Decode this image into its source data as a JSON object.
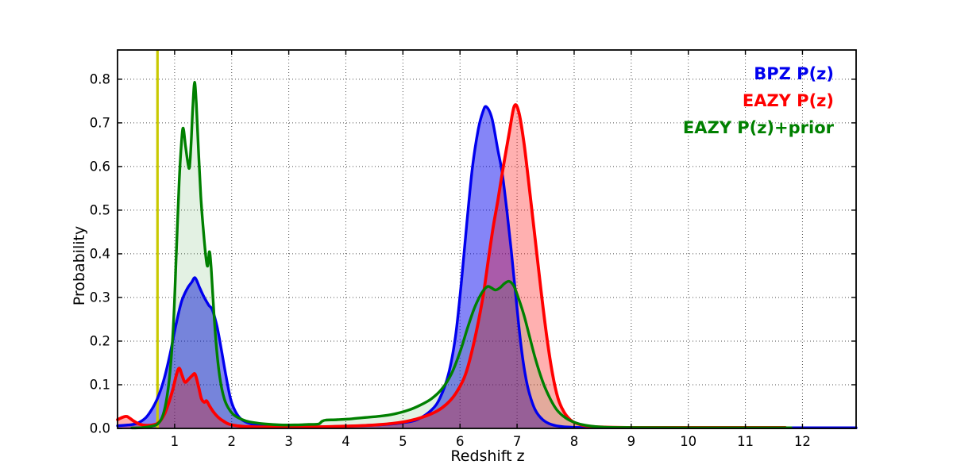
{
  "figure": {
    "background": "#ffffff",
    "xlabel": "Redshift z",
    "ylabel": "Probability"
  },
  "legend": {
    "position": "upper right",
    "items": [
      {
        "label": "BPZ P(z)",
        "color": "#0000ee"
      },
      {
        "label": "EAZY P(z)",
        "color": "#ff0000"
      },
      {
        "label": "EAZY P(z)+prior",
        "color": "#008000"
      }
    ]
  },
  "chart_data": {
    "type": "line",
    "title": "",
    "xlabel": "Redshift z",
    "ylabel": "Probability",
    "xlim": [
      0,
      12.94
    ],
    "ylim": [
      0,
      0.867
    ],
    "xticks": [
      1,
      2,
      3,
      4,
      5,
      6,
      7,
      8,
      9,
      10,
      11,
      12
    ],
    "yticks": [
      "0.0",
      "0.1",
      "0.2",
      "0.3",
      "0.4",
      "0.5",
      "0.6",
      "0.7",
      "0.8"
    ],
    "grid": true,
    "grid_style": "dotted",
    "vline": {
      "x": 0.7,
      "color": "#c9c900",
      "width": 3.2
    },
    "series": [
      {
        "name": "BPZ P(z)",
        "color": "#0000ee",
        "fill_opacity": 0.48,
        "line_width": 3.4,
        "points": [
          [
            0,
            0.006
          ],
          [
            0.2,
            0.008
          ],
          [
            0.35,
            0.012
          ],
          [
            0.5,
            0.025
          ],
          [
            0.62,
            0.048
          ],
          [
            0.72,
            0.075
          ],
          [
            0.82,
            0.115
          ],
          [
            0.92,
            0.17
          ],
          [
            1.02,
            0.235
          ],
          [
            1.12,
            0.29
          ],
          [
            1.22,
            0.32
          ],
          [
            1.3,
            0.335
          ],
          [
            1.36,
            0.345
          ],
          [
            1.44,
            0.322
          ],
          [
            1.52,
            0.3
          ],
          [
            1.6,
            0.282
          ],
          [
            1.66,
            0.272
          ],
          [
            1.74,
            0.235
          ],
          [
            1.82,
            0.18
          ],
          [
            1.9,
            0.12
          ],
          [
            1.98,
            0.068
          ],
          [
            2.06,
            0.04
          ],
          [
            2.16,
            0.022
          ],
          [
            2.3,
            0.012
          ],
          [
            2.5,
            0.007
          ],
          [
            2.8,
            0.005
          ],
          [
            3.2,
            0.004
          ],
          [
            3.7,
            0.004
          ],
          [
            4.2,
            0.006
          ],
          [
            4.7,
            0.009
          ],
          [
            5.0,
            0.013
          ],
          [
            5.25,
            0.02
          ],
          [
            5.5,
            0.042
          ],
          [
            5.65,
            0.07
          ],
          [
            5.8,
            0.125
          ],
          [
            5.92,
            0.21
          ],
          [
            6.02,
            0.33
          ],
          [
            6.12,
            0.47
          ],
          [
            6.22,
            0.6
          ],
          [
            6.32,
            0.685
          ],
          [
            6.4,
            0.725
          ],
          [
            6.46,
            0.737
          ],
          [
            6.56,
            0.71
          ],
          [
            6.66,
            0.64
          ],
          [
            6.74,
            0.585
          ],
          [
            6.82,
            0.5
          ],
          [
            6.9,
            0.405
          ],
          [
            6.98,
            0.3
          ],
          [
            7.06,
            0.2
          ],
          [
            7.14,
            0.125
          ],
          [
            7.22,
            0.078
          ],
          [
            7.32,
            0.042
          ],
          [
            7.45,
            0.02
          ],
          [
            7.6,
            0.009
          ],
          [
            7.8,
            0.004
          ],
          [
            8.2,
            0.002
          ],
          [
            9,
            0.0015
          ],
          [
            10,
            0.0015
          ],
          [
            11.5,
            0.0015
          ],
          [
            12.94,
            0.0015
          ]
        ]
      },
      {
        "name": "EAZY P(z)",
        "color": "#ff0000",
        "fill_opacity": 0.31,
        "line_width": 3.8,
        "points": [
          [
            0,
            0.02
          ],
          [
            0.1,
            0.026
          ],
          [
            0.17,
            0.027
          ],
          [
            0.27,
            0.018
          ],
          [
            0.38,
            0.01
          ],
          [
            0.5,
            0.007
          ],
          [
            0.62,
            0.008
          ],
          [
            0.72,
            0.013
          ],
          [
            0.82,
            0.032
          ],
          [
            0.9,
            0.06
          ],
          [
            0.97,
            0.09
          ],
          [
            1.03,
            0.122
          ],
          [
            1.08,
            0.138
          ],
          [
            1.13,
            0.122
          ],
          [
            1.18,
            0.106
          ],
          [
            1.24,
            0.112
          ],
          [
            1.3,
            0.12
          ],
          [
            1.36,
            0.124
          ],
          [
            1.42,
            0.095
          ],
          [
            1.47,
            0.068
          ],
          [
            1.52,
            0.06
          ],
          [
            1.56,
            0.063
          ],
          [
            1.61,
            0.052
          ],
          [
            1.68,
            0.038
          ],
          [
            1.76,
            0.026
          ],
          [
            1.85,
            0.017
          ],
          [
            1.95,
            0.01
          ],
          [
            2.1,
            0.006
          ],
          [
            2.3,
            0.004
          ],
          [
            2.6,
            0.003
          ],
          [
            3.0,
            0.003
          ],
          [
            3.5,
            0.0035
          ],
          [
            4.0,
            0.005
          ],
          [
            4.4,
            0.007
          ],
          [
            4.8,
            0.011
          ],
          [
            5.1,
            0.017
          ],
          [
            5.35,
            0.026
          ],
          [
            5.6,
            0.04
          ],
          [
            5.8,
            0.06
          ],
          [
            5.95,
            0.085
          ],
          [
            6.1,
            0.125
          ],
          [
            6.25,
            0.2
          ],
          [
            6.4,
            0.3
          ],
          [
            6.5,
            0.39
          ],
          [
            6.58,
            0.46
          ],
          [
            6.66,
            0.52
          ],
          [
            6.76,
            0.6
          ],
          [
            6.86,
            0.675
          ],
          [
            6.95,
            0.738
          ],
          [
            7.03,
            0.725
          ],
          [
            7.12,
            0.655
          ],
          [
            7.22,
            0.545
          ],
          [
            7.32,
            0.43
          ],
          [
            7.42,
            0.315
          ],
          [
            7.52,
            0.21
          ],
          [
            7.62,
            0.125
          ],
          [
            7.72,
            0.068
          ],
          [
            7.82,
            0.038
          ],
          [
            7.93,
            0.02
          ],
          [
            8.05,
            0.011
          ],
          [
            8.2,
            0.006
          ],
          [
            8.5,
            0.003
          ],
          [
            9,
            0.002
          ],
          [
            10,
            0.002
          ],
          [
            11.7,
            0.002
          ]
        ]
      },
      {
        "name": "EAZY P(z)+prior",
        "color": "#008000",
        "fill_opacity": 0.11,
        "line_width": 3.4,
        "points": [
          [
            0.25,
            0.001
          ],
          [
            0.45,
            0.002
          ],
          [
            0.6,
            0.005
          ],
          [
            0.7,
            0.01
          ],
          [
            0.78,
            0.025
          ],
          [
            0.85,
            0.06
          ],
          [
            0.92,
            0.13
          ],
          [
            0.98,
            0.24
          ],
          [
            1.03,
            0.4
          ],
          [
            1.08,
            0.565
          ],
          [
            1.12,
            0.655
          ],
          [
            1.15,
            0.688
          ],
          [
            1.19,
            0.648
          ],
          [
            1.23,
            0.61
          ],
          [
            1.26,
            0.598
          ],
          [
            1.29,
            0.655
          ],
          [
            1.32,
            0.74
          ],
          [
            1.35,
            0.793
          ],
          [
            1.38,
            0.745
          ],
          [
            1.42,
            0.63
          ],
          [
            1.46,
            0.53
          ],
          [
            1.51,
            0.445
          ],
          [
            1.55,
            0.39
          ],
          [
            1.58,
            0.372
          ],
          [
            1.61,
            0.405
          ],
          [
            1.64,
            0.368
          ],
          [
            1.69,
            0.26
          ],
          [
            1.74,
            0.175
          ],
          [
            1.8,
            0.11
          ],
          [
            1.87,
            0.068
          ],
          [
            1.94,
            0.047
          ],
          [
            2.02,
            0.033
          ],
          [
            2.12,
            0.024
          ],
          [
            2.25,
            0.017
          ],
          [
            2.4,
            0.013
          ],
          [
            2.6,
            0.01
          ],
          [
            2.85,
            0.008
          ],
          [
            3.1,
            0.008
          ],
          [
            3.35,
            0.009
          ],
          [
            3.52,
            0.01
          ],
          [
            3.58,
            0.016
          ],
          [
            3.65,
            0.019
          ],
          [
            3.85,
            0.02
          ],
          [
            4.1,
            0.022
          ],
          [
            4.35,
            0.025
          ],
          [
            4.6,
            0.028
          ],
          [
            4.85,
            0.033
          ],
          [
            5.1,
            0.042
          ],
          [
            5.3,
            0.053
          ],
          [
            5.5,
            0.068
          ],
          [
            5.68,
            0.09
          ],
          [
            5.85,
            0.125
          ],
          [
            6.0,
            0.175
          ],
          [
            6.12,
            0.225
          ],
          [
            6.25,
            0.275
          ],
          [
            6.38,
            0.31
          ],
          [
            6.48,
            0.325
          ],
          [
            6.55,
            0.322
          ],
          [
            6.62,
            0.317
          ],
          [
            6.7,
            0.322
          ],
          [
            6.78,
            0.332
          ],
          [
            6.86,
            0.337
          ],
          [
            6.94,
            0.327
          ],
          [
            7.02,
            0.3
          ],
          [
            7.12,
            0.26
          ],
          [
            7.22,
            0.21
          ],
          [
            7.32,
            0.16
          ],
          [
            7.45,
            0.107
          ],
          [
            7.58,
            0.068
          ],
          [
            7.7,
            0.042
          ],
          [
            7.85,
            0.024
          ],
          [
            8.0,
            0.014
          ],
          [
            8.2,
            0.007
          ],
          [
            8.5,
            0.003
          ],
          [
            9,
            0.002
          ],
          [
            10,
            0.0015
          ],
          [
            11.8,
            0.0015
          ]
        ]
      }
    ]
  }
}
